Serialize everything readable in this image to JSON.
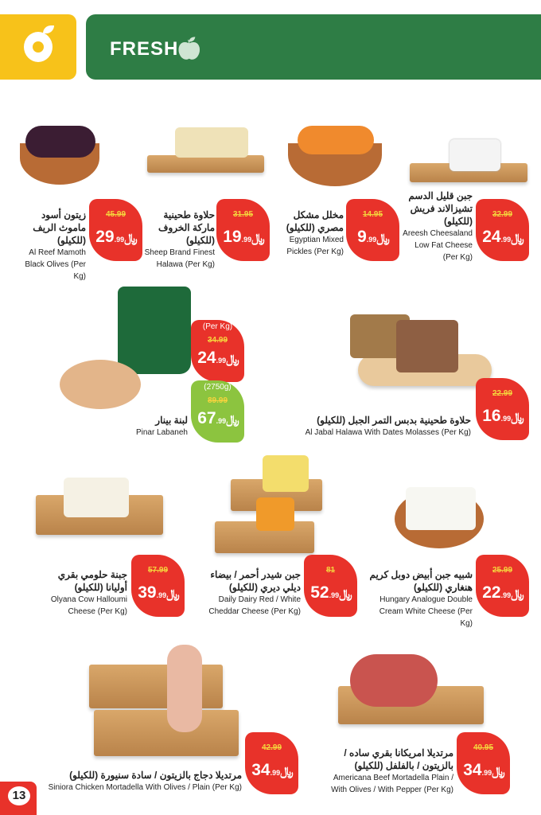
{
  "header": {
    "title": "FRESH",
    "icon": "fruit-vegetable-icon",
    "logo": "brand-logo"
  },
  "currency_symbol": "⃁",
  "page_number": "13",
  "products": [
    {
      "ar": "زيتون أسود ماموث الريف (للكيلو)",
      "en": "Al Reef Mamoth Black Olives (Per Kg)",
      "old": "45.99",
      "price": "29",
      "dec": ".99"
    },
    {
      "ar": "حلاوة طحينية ماركة الخروف (للكيلو)",
      "en": "Sheep Brand Finest Halawa (Per Kg)",
      "old": "31.95",
      "price": "19",
      "dec": ".99"
    },
    {
      "ar": "مخلل مشكل مصري (للكيلو)",
      "en": "Egyptian Mixed Pickles (Per Kg)",
      "old": "14.95",
      "price": "9",
      "dec": ".99"
    },
    {
      "ar": "جبن قليل الدسم تشيزالاند فريش (للكيلو)",
      "en": "Areesh Cheesaland Low Fat Cheese (Per Kg)",
      "old": "32.99",
      "price": "24",
      "dec": ".99"
    },
    {
      "ar": "لبنة بينار",
      "en": "Pinar Labaneh",
      "unit": "(Per Kg)",
      "old": "34.99",
      "price": "24",
      "dec": ".99",
      "unit2": "(2750g)",
      "old2": "89.99",
      "price2": "67",
      "dec2": ".99"
    },
    {
      "ar": "حلاوة طحينية بدبس التمر الجبل (للكيلو)",
      "en": "Al Jabal Halawa With Dates Molasses (Per Kg)",
      "old": "22.99",
      "price": "16",
      "dec": ".99"
    },
    {
      "ar": "جبنة حلومي بقري أوليانا (للكيلو)",
      "en": "Olyana Cow Halloumi Cheese (Per Kg)",
      "old": "57.99",
      "price": "39",
      "dec": ".99"
    },
    {
      "ar": "جبن شيدر أحمر / بيضاء ديلي ديري (للكيلو)",
      "en": "Daily Dairy Red / White Cheddar Cheese (Per Kg)",
      "old": "81",
      "price": "52",
      "dec": ".99"
    },
    {
      "ar": "شبيه جبن أبيض دوبل كريم هنغاري (للكيلو)",
      "en": "Hungary Analogue Double Cream White Cheese (Per Kg)",
      "old": "25.99",
      "price": "22",
      "dec": ".99"
    },
    {
      "ar": "مرتديلا دجاج بالزيتون / سادة سنيورة (للكيلو)",
      "en": "Siniora Chicken Mortadella With Olives / Plain (Per Kg)",
      "old": "42.99",
      "price": "34",
      "dec": ".99"
    },
    {
      "ar": "مرتديلا امريكانا بقري ساده / بالزيتون / بالفلفل (للكيلو)",
      "en": "Americana Beef Mortadella Plain / With Olives / With Pepper (Per Kg)",
      "old": "40.95",
      "price": "34",
      "dec": ".99"
    }
  ],
  "colors": {
    "red": "#e8322a",
    "green": "#2e7d45",
    "yellow": "#f7c21a",
    "lime": "#8cc43f"
  }
}
